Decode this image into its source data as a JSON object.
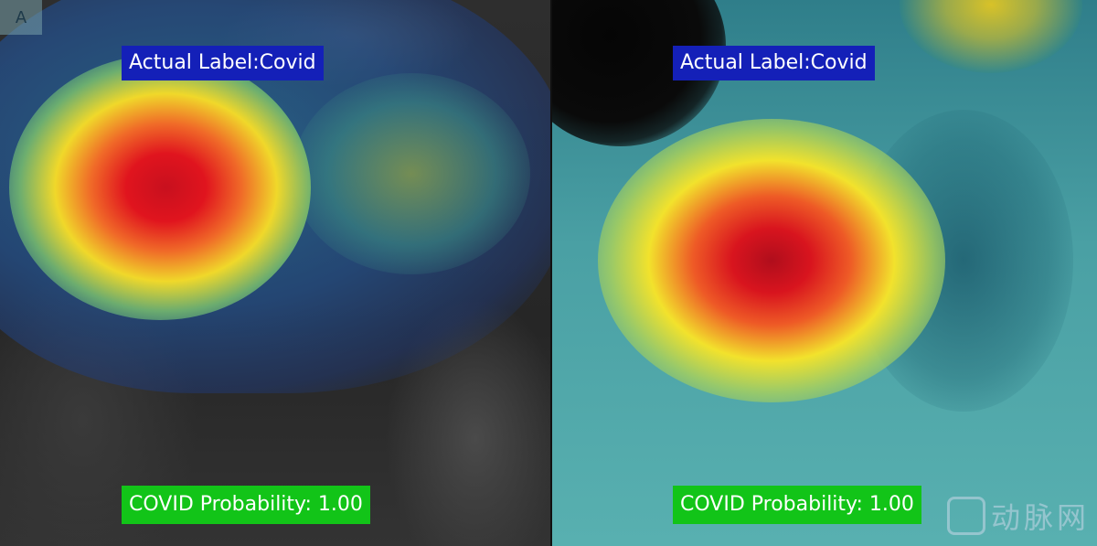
{
  "panel_letter": "A",
  "left_panel": {
    "actual_label": "Actual Label:Covid",
    "probability_label": "COVID Probability: 1.00"
  },
  "right_panel": {
    "actual_label": "Actual Label:Covid",
    "probability_label": "COVID Probability: 1.00"
  },
  "watermark": {
    "text": "动脉网"
  },
  "colors": {
    "actual_label_bg": "#1420b8",
    "probability_label_bg": "#12c418",
    "heat_hot": "#e0141e",
    "heat_warm": "#f0d82a",
    "heat_cool": "#2a9a8c",
    "heat_cold": "#1a3a7a"
  }
}
